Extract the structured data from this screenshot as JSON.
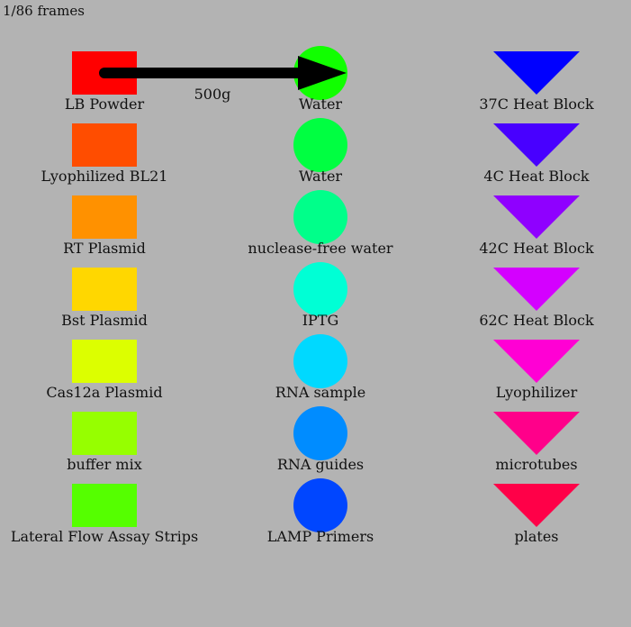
{
  "frame_counter": "1/86 frames",
  "columns": [
    {
      "shape": "square",
      "items": [
        {
          "label": "LB Powder",
          "color": "#ff0000"
        },
        {
          "label": "Lyophilized BL21",
          "color": "#ff4d00"
        },
        {
          "label": "RT Plasmid",
          "color": "#ff9100"
        },
        {
          "label": "Bst Plasmid",
          "color": "#ffd700"
        },
        {
          "label": "Cas12a Plasmid",
          "color": "#dcff00"
        },
        {
          "label": "buffer mix",
          "color": "#96ff00"
        },
        {
          "label": "Lateral Flow Assay Strips",
          "color": "#55ff00"
        }
      ]
    },
    {
      "shape": "circle",
      "items": [
        {
          "label": "Water",
          "color": "#11ff00"
        },
        {
          "label": "Water",
          "color": "#00ff41"
        },
        {
          "label": "nuclease-free water",
          "color": "#00ff8a"
        },
        {
          "label": "IPTG",
          "color": "#00ffd5"
        },
        {
          "label": "RNA sample",
          "color": "#00d9ff"
        },
        {
          "label": "RNA guides",
          "color": "#008cff"
        },
        {
          "label": "LAMP Primers",
          "color": "#0046ff"
        }
      ]
    },
    {
      "shape": "triangle",
      "items": [
        {
          "label": "37C Heat Block",
          "color": "#0000ff"
        },
        {
          "label": "4C Heat Block",
          "color": "#4800ff"
        },
        {
          "label": "42C Heat Block",
          "color": "#8f00ff"
        },
        {
          "label": "62C Heat Block",
          "color": "#d400ff"
        },
        {
          "label": "Lyophilizer",
          "color": "#ff00d4"
        },
        {
          "label": "microtubes",
          "color": "#ff008a"
        },
        {
          "label": "plates",
          "color": "#ff0048"
        }
      ]
    }
  ],
  "arrow": {
    "from": "LB Powder",
    "to": "Water",
    "label": "500g",
    "color": "#000000"
  }
}
